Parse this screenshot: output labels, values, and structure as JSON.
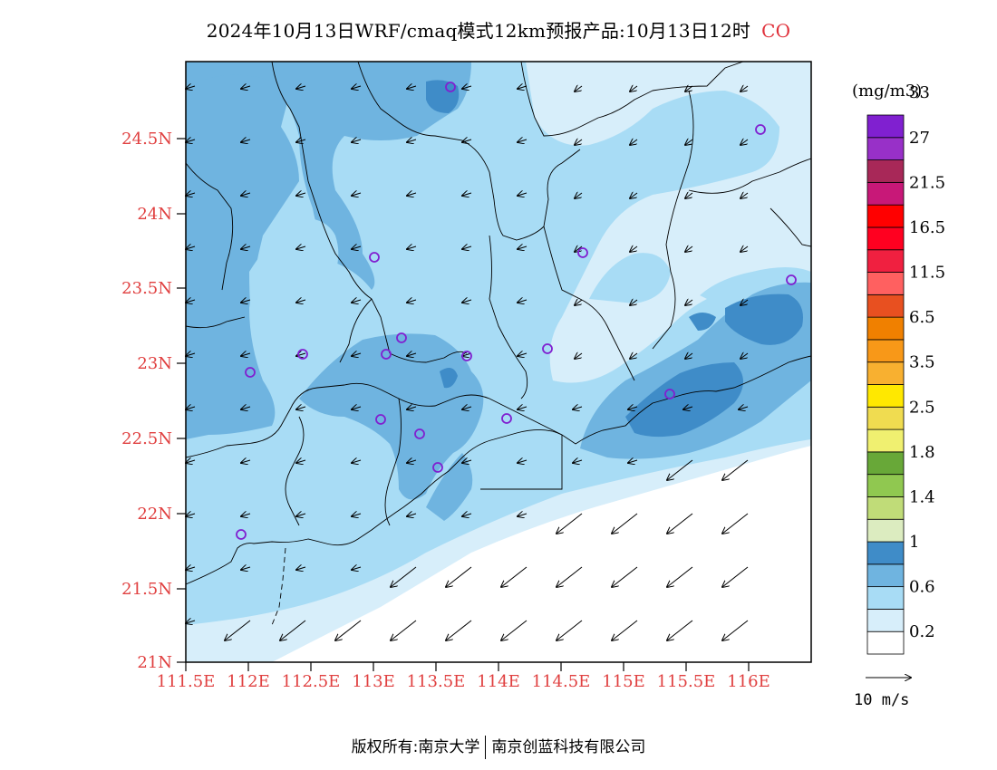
{
  "title": {
    "text": "2024年10月13日WRF/cmaq模式12km预报产品:10月13日12时",
    "species": "CO"
  },
  "legend": {
    "unit": "(mg/m3)",
    "colors": [
      "#ffffff",
      "#d7eefa",
      "#a8dcf5",
      "#6fb4e0",
      "#3f8cc8",
      "#dcecc0",
      "#c0dc78",
      "#90c850",
      "#68a838",
      "#f0f070",
      "#f0dc50",
      "#ffe800",
      "#f8b030",
      "#f89818",
      "#f08000",
      "#e85020",
      "#ff6060",
      "#f02040",
      "#ff0020",
      "#ff0000",
      "#c81878",
      "#a82858",
      "#9830c8",
      "#8020d0"
    ],
    "labels": [
      "0.2",
      "0.6",
      "1",
      "1.4",
      "1.8",
      "2.5",
      "3.5",
      "6.5",
      "11.5",
      "16.5",
      "21.5",
      "27",
      "33"
    ],
    "reference_vector": "10 m/s"
  },
  "axes": {
    "x_ticks": [
      "111.5E",
      "112E",
      "112.5E",
      "113E",
      "113.5E",
      "114E",
      "114.5E",
      "115E",
      "115.5E",
      "116E"
    ],
    "y_ticks": [
      "24.5N",
      "24N",
      "23.5N",
      "23N",
      "22.5N",
      "22N",
      "21.5N",
      "21N"
    ]
  },
  "footer": {
    "left": "版权所有:南京大学",
    "right": "南京创蓝科技有限公司"
  }
}
